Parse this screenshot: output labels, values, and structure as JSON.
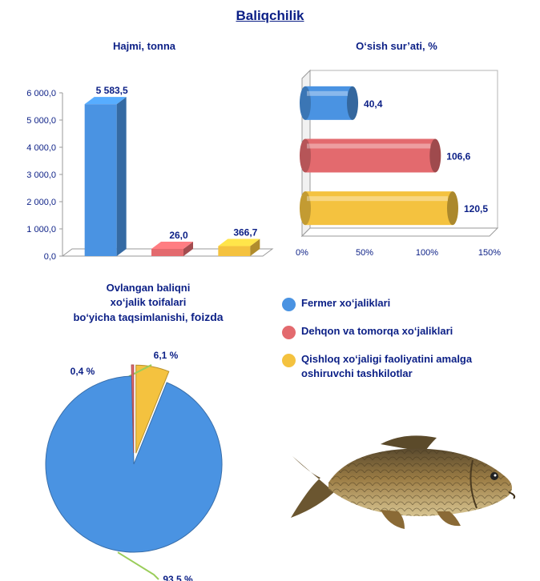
{
  "page": {
    "title": "Baliqchilik"
  },
  "colors": {
    "blue": "#4a93e2",
    "red": "#e36a6e",
    "yellow": "#f4c23f",
    "text": "#0b1f86"
  },
  "chart_data": [
    {
      "id": "volume",
      "type": "bar",
      "title": "Hajmi, tonna",
      "categories": [
        "Fermer xo‘jaliklari",
        "Dehqon va tomorqa xo‘jaliklari",
        "Qishloq xo‘jaligi faoliyatini amalga oshiruvchi tashkilotlar"
      ],
      "values": [
        5583.5,
        26.0,
        366.7
      ],
      "value_labels": [
        "5 583,5",
        "26,0",
        "366,7"
      ],
      "yticks": [
        "0,0",
        "1 000,0",
        "2 000,0",
        "3 000,0",
        "4 000,0",
        "5 000,0",
        "6 000,0"
      ],
      "ylim": [
        0,
        6000
      ],
      "colors": [
        "#4a93e2",
        "#e36a6e",
        "#f4c23f"
      ]
    },
    {
      "id": "growth",
      "type": "bar",
      "orientation": "horizontal",
      "title": "O‘sish sur’ati, %",
      "categories": [
        "Fermer xo‘jaliklari",
        "Dehqon va tomorqa xo‘jaliklari",
        "Qishloq xo‘jaligi faoliyatini amalga oshiruvchi tashkilotlar"
      ],
      "values": [
        40.4,
        106.6,
        120.5
      ],
      "value_labels": [
        "40,4",
        "106,6",
        "120,5"
      ],
      "xticks": [
        "0%",
        "50%",
        "100%",
        "150%"
      ],
      "xlim": [
        0,
        150
      ],
      "colors": [
        "#4a93e2",
        "#e36a6e",
        "#f4c23f"
      ]
    },
    {
      "id": "share",
      "type": "pie",
      "title_lines": [
        "Ovlangan baliqni",
        "xo‘jalik toifalari",
        "bo‘yicha taqsimlanishi,"
      ],
      "title_suffix": "foizda",
      "categories": [
        "Fermer xo‘jaliklari",
        "Dehqon va tomorqa xo‘jaliklari",
        "Qishloq xo‘jaligi faoliyatini amalga oshiruvchi tashkilotlar"
      ],
      "values": [
        93.5,
        0.4,
        6.1
      ],
      "value_labels": [
        "93,5 %",
        "0,4 %",
        "6,1 %"
      ],
      "colors": [
        "#4a93e2",
        "#e36a6e",
        "#f4c23f"
      ]
    }
  ],
  "legend": [
    {
      "label": "Fermer xo‘jaliklari",
      "color": "#4a93e2"
    },
    {
      "label": "Dehqon va tomorqa xo‘jaliklari",
      "color": "#e36a6e"
    },
    {
      "label": "Qishloq xo‘jaligi faoliyatini amalga oshiruvchi tashkilotlar",
      "color": "#f4c23f"
    }
  ]
}
